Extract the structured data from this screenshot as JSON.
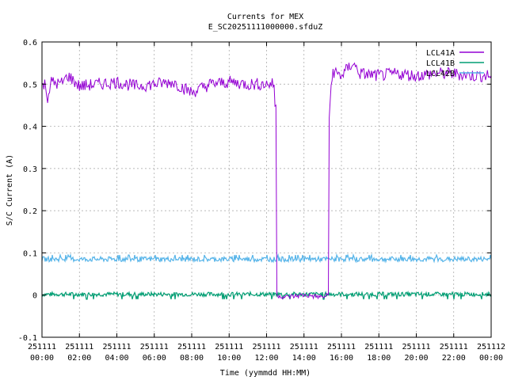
{
  "chart_data": {
    "type": "line",
    "title": "Currents for MEX",
    "subtitle": "E_SC20251111000000.sfduZ",
    "xlabel": "Time (yymmdd HH:MM)",
    "ylabel": "S/C Current (A)",
    "xlim_hours": [
      0,
      24
    ],
    "ylim": [
      -0.1,
      0.6
    ],
    "grid": true,
    "legend_position": "top-right",
    "x_ticks": [
      {
        "hour": 0,
        "date": "251111",
        "time": "00:00"
      },
      {
        "hour": 2,
        "date": "251111",
        "time": "02:00"
      },
      {
        "hour": 4,
        "date": "251111",
        "time": "04:00"
      },
      {
        "hour": 6,
        "date": "251111",
        "time": "06:00"
      },
      {
        "hour": 8,
        "date": "251111",
        "time": "08:00"
      },
      {
        "hour": 10,
        "date": "251111",
        "time": "10:00"
      },
      {
        "hour": 12,
        "date": "251111",
        "time": "12:00"
      },
      {
        "hour": 14,
        "date": "251111",
        "time": "14:00"
      },
      {
        "hour": 16,
        "date": "251111",
        "time": "16:00"
      },
      {
        "hour": 18,
        "date": "251111",
        "time": "18:00"
      },
      {
        "hour": 20,
        "date": "251111",
        "time": "20:00"
      },
      {
        "hour": 22,
        "date": "251111",
        "time": "22:00"
      },
      {
        "hour": 24,
        "date": "251112",
        "time": "00:00"
      }
    ],
    "y_ticks": [
      {
        "value": -0.1,
        "label": "-0.1"
      },
      {
        "value": 0,
        "label": "0"
      },
      {
        "value": 0.1,
        "label": "0.1"
      },
      {
        "value": 0.2,
        "label": "0.2"
      },
      {
        "value": 0.3,
        "label": "0.3"
      },
      {
        "value": 0.4,
        "label": "0.4"
      },
      {
        "value": 0.5,
        "label": "0.5"
      },
      {
        "value": 0.6,
        "label": "0.6"
      }
    ],
    "series": [
      {
        "name": "LCL41A",
        "color": "#9400d3",
        "points": [
          [
            0.0,
            0.495
          ],
          [
            0.15,
            0.5
          ],
          [
            0.3,
            0.47
          ],
          [
            0.5,
            0.505
          ],
          [
            1.0,
            0.5
          ],
          [
            1.4,
            0.52
          ],
          [
            2.0,
            0.495
          ],
          [
            3.0,
            0.5
          ],
          [
            4.0,
            0.505
          ],
          [
            5.0,
            0.495
          ],
          [
            6.0,
            0.5
          ],
          [
            7.0,
            0.505
          ],
          [
            8.0,
            0.48
          ],
          [
            9.0,
            0.5
          ],
          [
            10.0,
            0.505
          ],
          [
            11.0,
            0.5
          ],
          [
            12.0,
            0.5
          ],
          [
            12.4,
            0.5
          ],
          [
            12.45,
            0.45
          ],
          [
            12.5,
            0.45
          ],
          [
            12.55,
            0.0
          ],
          [
            13.0,
            -0.005
          ],
          [
            14.0,
            0.0
          ],
          [
            15.0,
            -0.005
          ],
          [
            15.3,
            0.0
          ],
          [
            15.35,
            0.42
          ],
          [
            15.45,
            0.5
          ],
          [
            15.55,
            0.53
          ],
          [
            16.0,
            0.52
          ],
          [
            16.6,
            0.55
          ],
          [
            17.0,
            0.525
          ],
          [
            18.0,
            0.52
          ],
          [
            19.0,
            0.525
          ],
          [
            20.0,
            0.52
          ],
          [
            21.0,
            0.525
          ],
          [
            22.0,
            0.525
          ],
          [
            23.0,
            0.52
          ],
          [
            24.0,
            0.52
          ]
        ]
      },
      {
        "name": "LCL41B",
        "color": "#009e73",
        "points": [
          [
            0.0,
            0.002
          ],
          [
            6.0,
            0.002
          ],
          [
            12.0,
            0.002
          ],
          [
            18.0,
            0.002
          ],
          [
            24.0,
            0.002
          ]
        ]
      },
      {
        "name": "LCL42B",
        "color": "#56b4e9",
        "points": [
          [
            0.0,
            0.085
          ],
          [
            6.0,
            0.085
          ],
          [
            12.0,
            0.085
          ],
          [
            18.0,
            0.085
          ],
          [
            24.0,
            0.085
          ]
        ]
      }
    ]
  }
}
